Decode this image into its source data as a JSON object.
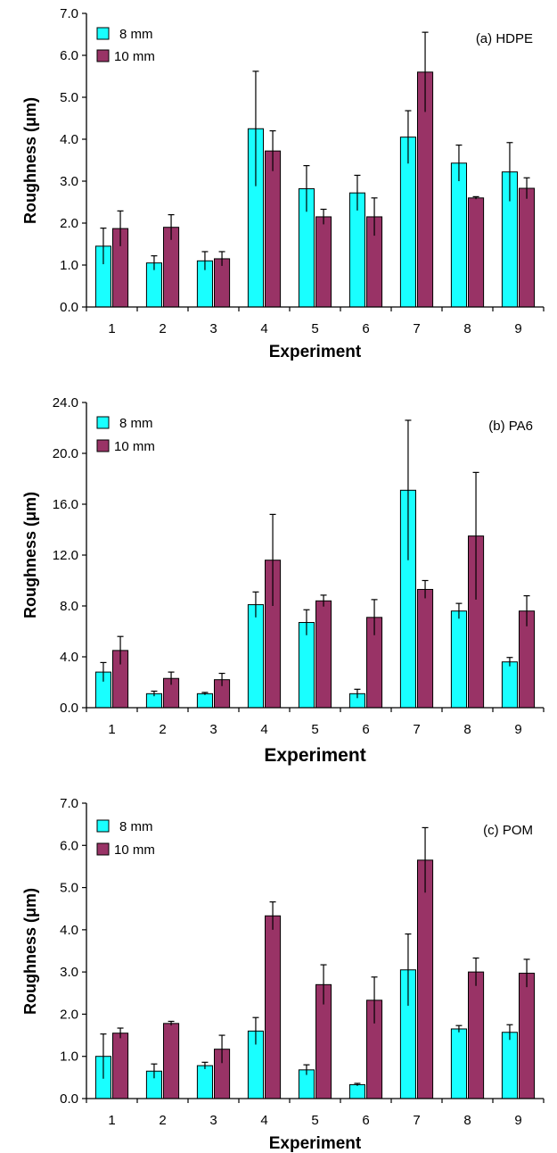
{
  "colors": {
    "series_8mm": "#19FFFF",
    "series_10mm": "#993366",
    "axis": "#000000"
  },
  "chart_data": [
    {
      "type": "bar",
      "panel_label": "(a) HDPE",
      "xlabel": "Experiment",
      "ylabel": "Roughness (μm)",
      "categories": [
        "1",
        "2",
        "3",
        "4",
        "5",
        "6",
        "7",
        "8",
        "9"
      ],
      "ylim": [
        0,
        7
      ],
      "yticks": [
        "0.0",
        "1.0",
        "2.0",
        "3.0",
        "4.0",
        "5.0",
        "6.0",
        "7.0"
      ],
      "ytick_values": [
        0,
        1,
        2,
        3,
        4,
        5,
        6,
        7
      ],
      "legend": "top-left",
      "series": [
        {
          "name": "8 mm",
          "values": [
            1.45,
            1.05,
            1.1,
            4.25,
            2.82,
            2.72,
            4.05,
            3.43,
            3.22
          ],
          "errors": [
            0.43,
            0.17,
            0.22,
            1.37,
            0.55,
            0.42,
            0.63,
            0.43,
            0.7
          ]
        },
        {
          "name": "10 mm",
          "values": [
            1.87,
            1.9,
            1.15,
            3.72,
            2.15,
            2.15,
            5.6,
            2.6,
            2.83
          ],
          "errors": [
            0.42,
            0.3,
            0.17,
            0.48,
            0.18,
            0.45,
            0.95,
            0.03,
            0.25
          ]
        }
      ]
    },
    {
      "type": "bar",
      "panel_label": "(b) PA6",
      "xlabel": "Experiment",
      "ylabel": "Roughness (μm)",
      "categories": [
        "1",
        "2",
        "3",
        "4",
        "5",
        "6",
        "7",
        "8",
        "9"
      ],
      "ylim": [
        0,
        24
      ],
      "yticks": [
        "0.0",
        "4.0",
        "8.0",
        "12.0",
        "16.0",
        "20.0",
        "24.0"
      ],
      "ytick_values": [
        0,
        4,
        8,
        12,
        16,
        20,
        24
      ],
      "legend": "top-left",
      "series": [
        {
          "name": "8 mm",
          "values": [
            2.8,
            1.1,
            1.1,
            8.1,
            6.7,
            1.1,
            17.1,
            7.6,
            3.6
          ],
          "errors": [
            0.75,
            0.2,
            0.1,
            1.0,
            1.0,
            0.35,
            5.5,
            0.6,
            0.35
          ]
        },
        {
          "name": "10 mm",
          "values": [
            4.5,
            2.3,
            2.2,
            11.6,
            8.4,
            7.1,
            9.3,
            13.5,
            7.6
          ],
          "errors": [
            1.1,
            0.5,
            0.5,
            3.6,
            0.45,
            1.4,
            0.7,
            5.0,
            1.2
          ]
        }
      ]
    },
    {
      "type": "bar",
      "panel_label": "(c) POM",
      "xlabel": "Experiment",
      "ylabel": "Roughness (μm)",
      "categories": [
        "1",
        "2",
        "3",
        "4",
        "5",
        "6",
        "7",
        "8",
        "9"
      ],
      "ylim": [
        0,
        7
      ],
      "yticks": [
        "0.0",
        "1.0",
        "2.0",
        "3.0",
        "4.0",
        "5.0",
        "6.0",
        "7.0"
      ],
      "ytick_values": [
        0,
        1,
        2,
        3,
        4,
        5,
        6,
        7
      ],
      "legend": "top-left",
      "series": [
        {
          "name": "8 mm",
          "values": [
            1.0,
            0.65,
            0.78,
            1.6,
            0.68,
            0.33,
            3.05,
            1.65,
            1.57
          ],
          "errors": [
            0.53,
            0.17,
            0.08,
            0.32,
            0.12,
            0.03,
            0.85,
            0.08,
            0.18
          ]
        },
        {
          "name": "10 mm",
          "values": [
            1.55,
            1.78,
            1.17,
            4.33,
            2.7,
            2.33,
            5.65,
            3.0,
            2.97
          ],
          "errors": [
            0.12,
            0.05,
            0.33,
            0.33,
            0.47,
            0.55,
            0.77,
            0.33,
            0.33
          ]
        }
      ]
    }
  ]
}
